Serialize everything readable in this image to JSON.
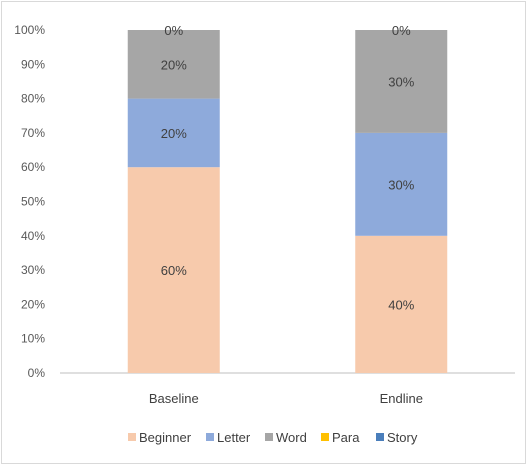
{
  "chart_data": {
    "type": "bar",
    "stacked": true,
    "percent": true,
    "categories": [
      "Baseline",
      "Endline"
    ],
    "series": [
      {
        "name": "Beginner",
        "color": "#f7caac",
        "values": [
          60,
          40
        ],
        "labels": [
          "60%",
          "40%"
        ]
      },
      {
        "name": "Letter",
        "color": "#8eaadb",
        "values": [
          20,
          30
        ],
        "labels": [
          "20%",
          "30%"
        ]
      },
      {
        "name": "Word",
        "color": "#a6a6a6",
        "values": [
          20,
          30
        ],
        "labels": [
          "20%",
          "30%"
        ]
      },
      {
        "name": "Para",
        "color": "#ffc000",
        "values": [
          0,
          0
        ],
        "labels": [
          "",
          ""
        ]
      },
      {
        "name": "Story",
        "color": "#4a7ebb",
        "values": [
          0,
          0
        ],
        "labels": [
          "0%",
          "0%"
        ]
      }
    ],
    "yticks": [
      "0%",
      "10%",
      "20%",
      "30%",
      "40%",
      "50%",
      "60%",
      "70%",
      "80%",
      "90%",
      "100%"
    ],
    "ylim": [
      0,
      100
    ],
    "grid": false,
    "legend": "bottom",
    "title": "",
    "xlabel": "",
    "ylabel": ""
  }
}
